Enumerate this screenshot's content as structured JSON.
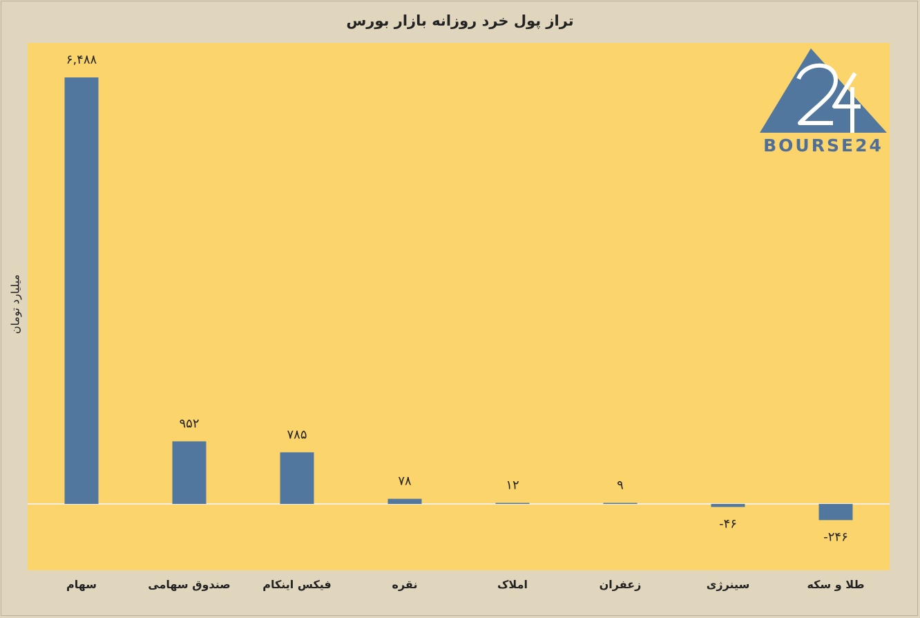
{
  "title": "تراز پول خرد روزانه بازار بورس",
  "logo_text": "BOURSE24",
  "logo_mark": "24",
  "colors": {
    "bar": "#51779e",
    "plot_bg": "#fbd46b",
    "page_bg": "#e0d6bd",
    "zero_line": "#f2efe2"
  },
  "chart_data": {
    "type": "bar",
    "title": "تراز پول خرد روزانه بازار بورس",
    "ylabel": "میلیارد تومان",
    "xlabel": "",
    "categories": [
      "سهام",
      "صندوق سهامی",
      "فیکس اینکام",
      "نقره",
      "املاک",
      "زعفران",
      "سینرژی",
      "طلا و سکه"
    ],
    "values": [
      6488,
      952,
      785,
      78,
      12,
      9,
      -46,
      -246
    ],
    "value_labels": [
      "۶,۴۸۸",
      "۹۵۲",
      "۷۸۵",
      "۷۸",
      "۱۲",
      "۹",
      "-۴۶",
      "-۲۴۶"
    ],
    "ylim": [
      -1000,
      7000
    ],
    "grid": false,
    "legend": "none"
  }
}
